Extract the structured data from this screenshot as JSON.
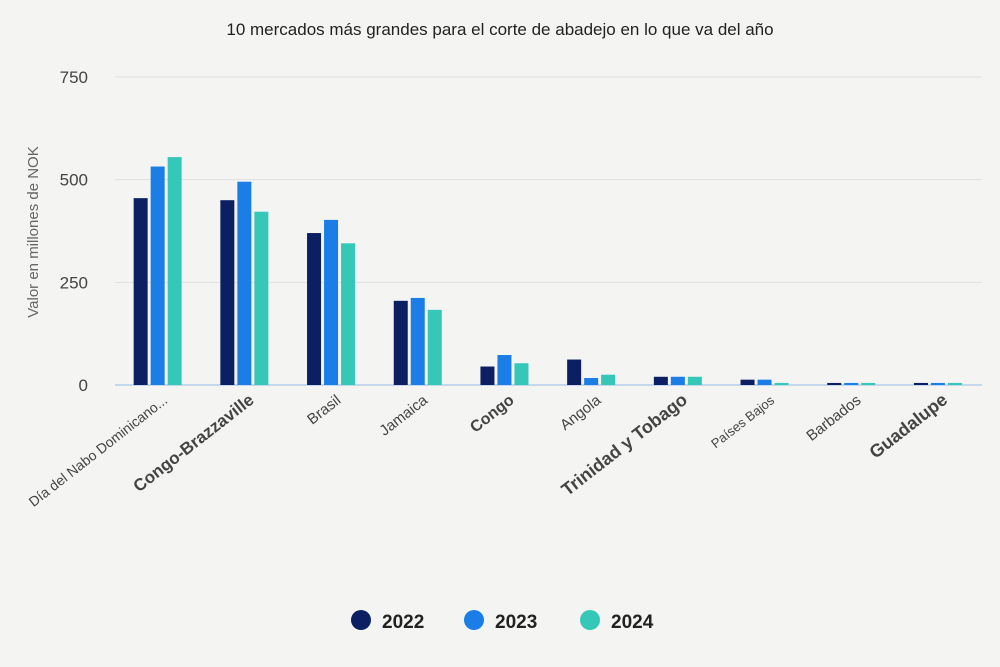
{
  "chart_data": {
    "type": "bar",
    "title": "10 mercados más grandes para el corte de abadejo en lo que va del año",
    "xlabel": "",
    "ylabel": "Valor en millones de NOK",
    "ylim": [
      0,
      750
    ],
    "yticks": [
      0,
      250,
      500,
      750
    ],
    "grid": true,
    "legend_position": "bottom",
    "categories": [
      "Día del Nabo Dominicano...",
      "Congo-Brazzaville",
      "Brasil",
      "Jamaica",
      "Congo",
      "Angola",
      "Trinidad y Tobago",
      "Países Bajos",
      "Barbados",
      "Guadalupe"
    ],
    "series": [
      {
        "name": "2022",
        "color": "#0c1f63",
        "values": [
          455,
          450,
          370,
          205,
          45,
          62,
          20,
          13,
          5,
          5
        ]
      },
      {
        "name": "2023",
        "color": "#1a7ee6",
        "values": [
          532,
          495,
          402,
          212,
          73,
          17,
          20,
          13,
          5,
          5
        ]
      },
      {
        "name": "2024",
        "color": "#35c8b8",
        "values": [
          555,
          422,
          345,
          183,
          53,
          25,
          20,
          5,
          5,
          5
        ]
      }
    ]
  }
}
